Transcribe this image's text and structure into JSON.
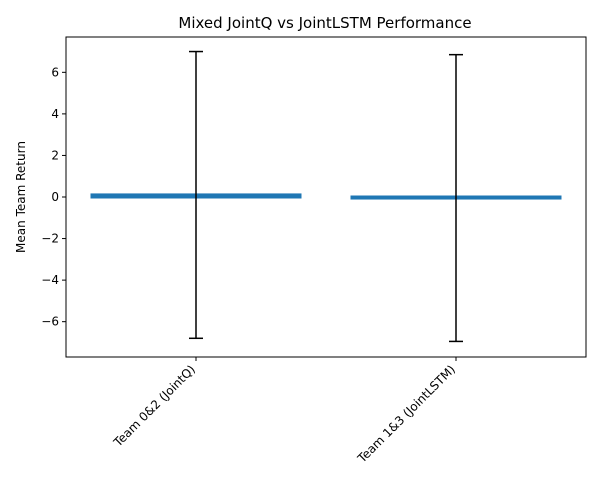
{
  "chart_data": {
    "type": "bar",
    "title": "Mixed JointQ vs JointLSTM Performance",
    "xlabel": "",
    "ylabel": "Mean Team Return",
    "categories": [
      "Team 0&2 (JointQ)",
      "Team 1&3 (JointLSTM)"
    ],
    "values": [
      0.1,
      -0.05
    ],
    "error": [
      6.9,
      6.9
    ],
    "ylim": [
      -7.7,
      7.7
    ],
    "yticks": [
      -6,
      -4,
      -2,
      0,
      2,
      4,
      6
    ],
    "ytick_labels": [
      "−6",
      "−4",
      "−2",
      "0",
      "2",
      "4",
      "6"
    ],
    "grid": false,
    "colors": {
      "bar": "#1f77b4",
      "error": "#000000"
    }
  }
}
